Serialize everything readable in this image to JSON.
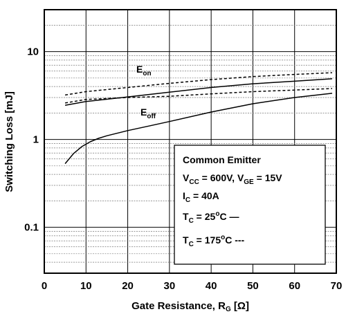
{
  "chart_data": {
    "type": "line",
    "xlabel": {
      "main": "Gate Resistance, R",
      "sub": "G",
      "unit": " [Ω]"
    },
    "ylabel": "Switching Loss [mJ]",
    "xlim": [
      0,
      70
    ],
    "ylim": [
      0.03,
      30
    ],
    "y_scale": "log",
    "x_ticks": [
      0,
      10,
      20,
      30,
      40,
      50,
      60,
      70
    ],
    "y_tick_labels": [
      {
        "value": 0.1,
        "label": "0.1"
      },
      {
        "value": 1,
        "label": "1"
      },
      {
        "value": 10,
        "label": "10"
      }
    ],
    "grid": true,
    "series": [
      {
        "name": "E_on",
        "condition": "Tc=25°C",
        "style": "solid",
        "x": [
          5,
          10,
          20,
          30,
          40,
          50,
          60,
          69
        ],
        "y": [
          2.45,
          2.7,
          3.05,
          3.45,
          3.9,
          4.3,
          4.6,
          4.9
        ]
      },
      {
        "name": "E_on",
        "condition": "Tc=175°C",
        "style": "dashed",
        "x": [
          5,
          10,
          20,
          30,
          40,
          50,
          60,
          69
        ],
        "y": [
          3.2,
          3.5,
          3.9,
          4.35,
          4.8,
          5.2,
          5.5,
          5.75
        ]
      },
      {
        "name": "E_off",
        "condition": "Tc=25°C",
        "style": "solid",
        "x": [
          5,
          7,
          9,
          11,
          13,
          15,
          20,
          25,
          30,
          40,
          50,
          60,
          69
        ],
        "y": [
          0.53,
          0.69,
          0.83,
          0.94,
          1.03,
          1.1,
          1.26,
          1.42,
          1.6,
          2.05,
          2.55,
          3.0,
          3.35
        ]
      },
      {
        "name": "E_off",
        "condition": "Tc=175°C",
        "style": "dashed",
        "x": [
          5,
          10,
          20,
          30,
          40,
          50,
          60,
          69
        ],
        "y": [
          2.6,
          2.85,
          3.0,
          3.1,
          3.3,
          3.5,
          3.65,
          3.8
        ]
      }
    ],
    "curve_labels": [
      {
        "main": "E",
        "sub": "on"
      },
      {
        "main": "E",
        "sub": "off"
      }
    ],
    "legend_box": {
      "lines": [
        {
          "parts": [
            {
              "t": "Common Emitter"
            }
          ]
        },
        {
          "parts": [
            {
              "t": "V"
            },
            {
              "t": "CC",
              "sub": true
            },
            {
              "t": " = 600V, V"
            },
            {
              "t": "GE",
              "sub": true
            },
            {
              "t": " = 15V"
            }
          ]
        },
        {
          "parts": [
            {
              "t": "I"
            },
            {
              "t": "C",
              "sub": true
            },
            {
              "t": " = 40A"
            }
          ]
        },
        {
          "parts": [
            {
              "t": "T"
            },
            {
              "t": "C",
              "sub": true
            },
            {
              "t": " = 25"
            },
            {
              "t": "o",
              "sup": true
            },
            {
              "t": "C  —"
            }
          ]
        },
        {
          "parts": [
            {
              "t": "T"
            },
            {
              "t": "C",
              "sub": true
            },
            {
              "t": " = 175"
            },
            {
              "t": "o",
              "sup": true
            },
            {
              "t": "C ---"
            }
          ]
        }
      ]
    }
  }
}
